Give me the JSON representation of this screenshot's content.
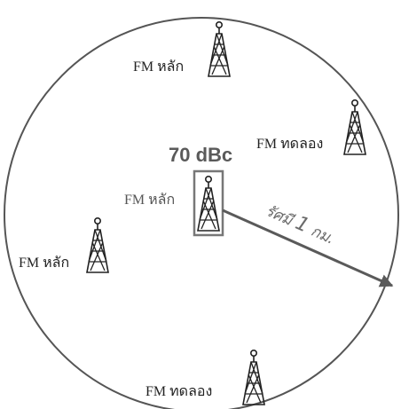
{
  "diagram": {
    "power_label": "70 dBc",
    "center_tower_label": "FM หลัก",
    "radius_prefix": "รัศมี",
    "radius_value": "1",
    "radius_unit": "กม.",
    "towers": [
      {
        "label": "FM หลัก"
      },
      {
        "label": "FM ทดลอง"
      },
      {
        "label": "FM หลัก"
      },
      {
        "label": "FM ทดลอง"
      }
    ]
  }
}
